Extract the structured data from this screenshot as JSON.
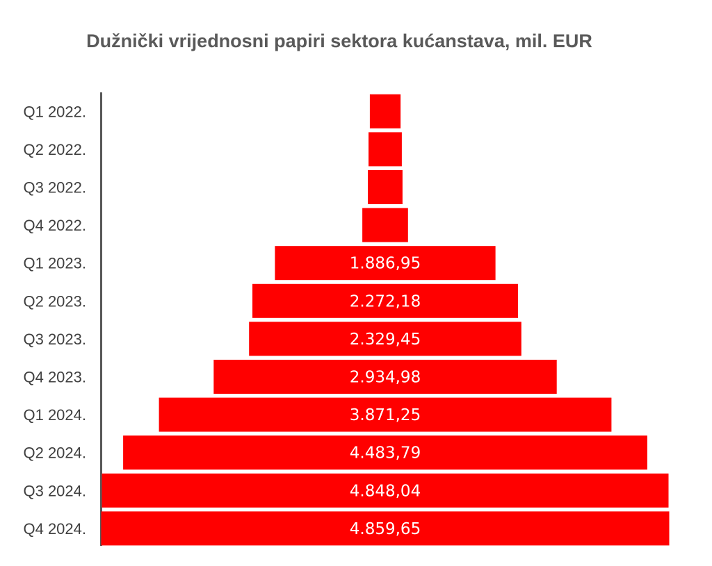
{
  "chart_data": {
    "type": "bar",
    "orientation": "horizontal",
    "layout": "centered-funnel",
    "title": "Dužnički vrijednosni papiri sektora kućanstava, mil. EUR",
    "categories": [
      "Q1 2022.",
      "Q2 2022.",
      "Q3 2022.",
      "Q4 2022.",
      "Q1 2023.",
      "Q2 2023.",
      "Q3 2023.",
      "Q4 2023.",
      "Q1 2024.",
      "Q2 2024.",
      "Q3 2024.",
      "Q4 2024."
    ],
    "values": [
      263,
      285,
      297,
      391,
      1886.95,
      2272.18,
      2329.45,
      2934.98,
      3871.25,
      4483.79,
      4848.04,
      4859.65
    ],
    "value_labels": [
      "",
      "",
      "",
      "",
      "1.886,95",
      "2.272,18",
      "2.329,45",
      "2.934,98",
      "3.871,25",
      "4.483,79",
      "4.848,04",
      "4.859,65"
    ],
    "bar_color": "#ff0000",
    "label_color": "#ffffff",
    "xlabel": "",
    "ylabel": "",
    "legend": "none",
    "grid": false
  }
}
